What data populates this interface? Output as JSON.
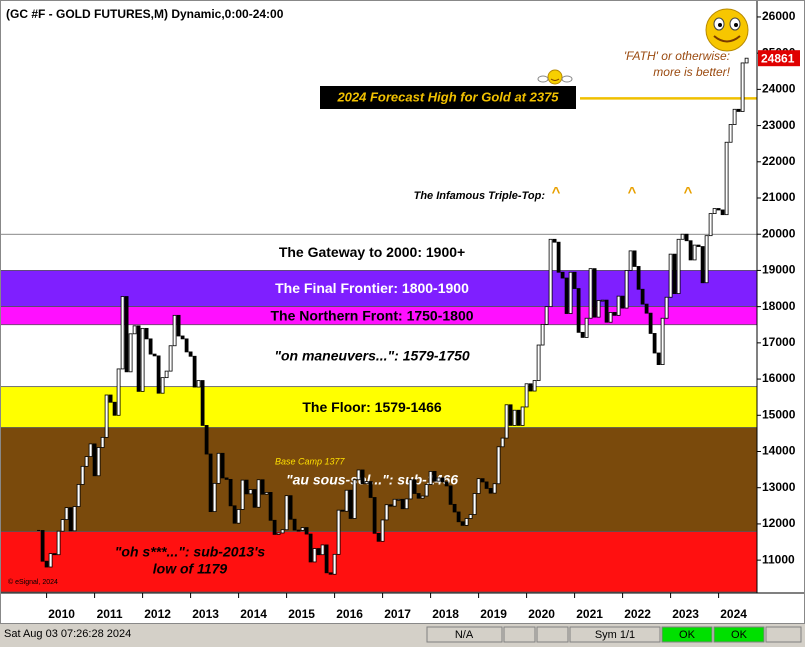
{
  "chart_data": {
    "type": "candlestick",
    "title": "(GC #F - GOLD FUTURES,M) Dynamic,0:00-24:00",
    "categories": [
      null,
      null,
      "2010",
      null,
      null,
      null,
      null,
      null,
      null,
      null,
      null,
      null,
      null,
      null,
      "2011",
      null,
      null,
      null,
      null,
      null,
      null,
      null,
      null,
      null,
      null,
      null,
      "2012",
      null,
      null,
      null,
      null,
      null,
      null,
      null,
      null,
      null,
      null,
      null,
      "2013",
      null,
      null,
      null,
      null,
      null,
      null,
      null,
      null,
      null,
      null,
      null,
      "2014",
      null,
      null,
      null,
      null,
      null,
      null,
      null,
      null,
      null,
      null,
      null,
      "2015",
      null,
      null,
      null,
      null,
      null,
      null,
      null,
      null,
      null,
      null,
      null,
      "2016",
      null,
      null,
      null,
      null,
      null,
      null,
      null,
      null,
      null,
      null,
      null,
      "2017",
      null,
      null,
      null,
      null,
      null,
      null,
      null,
      null,
      null,
      null,
      null,
      "2018",
      null,
      null,
      null,
      null,
      null,
      null,
      null,
      null,
      null,
      null,
      null,
      "2019",
      null,
      null,
      null,
      null,
      null,
      null,
      null,
      null,
      null,
      null,
      null,
      "2020",
      null,
      null,
      null,
      null,
      null,
      null,
      null,
      null,
      null,
      null,
      null,
      "2021",
      null,
      null,
      null,
      null,
      null,
      null,
      null,
      null,
      null,
      null,
      null,
      "2022",
      null,
      null,
      null,
      null,
      null,
      null,
      null,
      null,
      null,
      null,
      null,
      "2023",
      null,
      null,
      null,
      null,
      null,
      null,
      null,
      null,
      null,
      null,
      null,
      "2024",
      null,
      null,
      null,
      null,
      null,
      null,
      null
    ],
    "values": [
      11820,
      10970,
      10810,
      11180,
      11150,
      11800,
      12120,
      12450,
      11810,
      12480,
      13090,
      13590,
      13860,
      14210,
      13330,
      14110,
      14390,
      15560,
      15360,
      15000,
      16280,
      18280,
      16200,
      17250,
      17470,
      15660,
      17400,
      17110,
      16690,
      16640,
      15610,
      16040,
      16220,
      16920,
      17760,
      17190,
      17110,
      16750,
      16630,
      15780,
      15960,
      14720,
      13930,
      12340,
      13120,
      13950,
      13270,
      13230,
      12500,
      12020,
      12400,
      13210,
      12830,
      12950,
      12460,
      13220,
      12820,
      12870,
      12100,
      11710,
      11750,
      11840,
      12780,
      12130,
      11830,
      11820,
      11900,
      11720,
      10950,
      11320,
      11150,
      11420,
      10650,
      10610,
      11160,
      12380,
      12350,
      12930,
      12150,
      13220,
      13490,
      13110,
      13170,
      12730,
      11740,
      11520,
      12110,
      12530,
      12490,
      12680,
      12680,
      12420,
      12690,
      13220,
      12840,
      12710,
      12770,
      13090,
      13450,
      13180,
      13270,
      13160,
      13050,
      12540,
      12330,
      12060,
      11960,
      12150,
      12260,
      12840,
      13250,
      13160,
      12980,
      12850,
      13110,
      14130,
      14370,
      15290,
      14720,
      15140,
      14720,
      15230,
      15870,
      15670,
      15960,
      16940,
      17510,
      18000,
      19860,
      19780,
      18950,
      18790,
      17810,
      18950,
      18500,
      17290,
      17150,
      17680,
      19050,
      17710,
      18170,
      18180,
      17570,
      17840,
      17760,
      18290,
      17960,
      19000,
      19540,
      19110,
      18480,
      18070,
      17820,
      17260,
      16720,
      16400,
      17680,
      18260,
      19450,
      18360,
      19860,
      20000,
      19820,
      19290,
      19700,
      19660,
      18660,
      19960,
      20570,
      20710,
      20670,
      20540,
      22540,
      23030,
      23450,
      23390,
      24730,
      24861
    ],
    "up_color": "#ffffff",
    "down_color": "#000000",
    "ylim": [
      10120,
      26330
    ],
    "yticks": [
      11000,
      12000,
      13000,
      14000,
      15000,
      16000,
      17000,
      18000,
      19000,
      20000,
      21000,
      22000,
      23000,
      24000,
      25000,
      26000
    ],
    "last_price": {
      "value": 24861,
      "color": "#e00000"
    },
    "bands": [
      {
        "label": "The Gateway to 2000:  1900+",
        "from": 19000,
        "to": 20000,
        "color": "#ffffff",
        "text_color": "#000000"
      },
      {
        "label": "The Final Frontier:  1800-1900",
        "from": 18000,
        "to": 19000,
        "color": "#7f1fff",
        "text_color": "#ffffff"
      },
      {
        "label": "The Northern Front:  1750-1800",
        "from": 17500,
        "to": 18000,
        "color": "#ff10ff",
        "text_color": "#000000"
      },
      {
        "label": "\"on maneuvers...\":  1579-1750",
        "from": 15790,
        "to": 17500,
        "color": "#ffffff",
        "text_color": "#000000"
      },
      {
        "label": "The Floor:  1579-1466",
        "from": 14660,
        "to": 15790,
        "color": "#ffff00",
        "text_color": "#000000"
      },
      {
        "label": "\"au sous-sol...\":  sub-1466",
        "from": 11790,
        "to": 14660,
        "color": "#7a4a0c",
        "text_color": "#ffffff"
      },
      {
        "label": [
          "\"oh s***...\":  sub-2013's",
          "low of 1179"
        ],
        "from": 10120,
        "to": 11790,
        "color": "#ff1010",
        "text_color": "#000000"
      }
    ],
    "forecast": {
      "label": "2024 Forecast High for Gold at 2375",
      "value": 23750,
      "color": "#f0c000"
    },
    "annotations": {
      "fath": [
        "'FATH' or otherwise:",
        "more is better!"
      ],
      "triple_top": "The Infamous Triple-Top:",
      "triple_top_markers": [
        "^",
        "^",
        "^"
      ],
      "base_camp": "Base Camp 1377",
      "copyright": "© eSignal, 2024"
    }
  },
  "status_bar": {
    "datetime": "Sat Aug 03 07:26:28 2024",
    "field1": "N/A",
    "symbol": "Sym 1/1",
    "ok1": "OK",
    "ok2": "OK"
  }
}
